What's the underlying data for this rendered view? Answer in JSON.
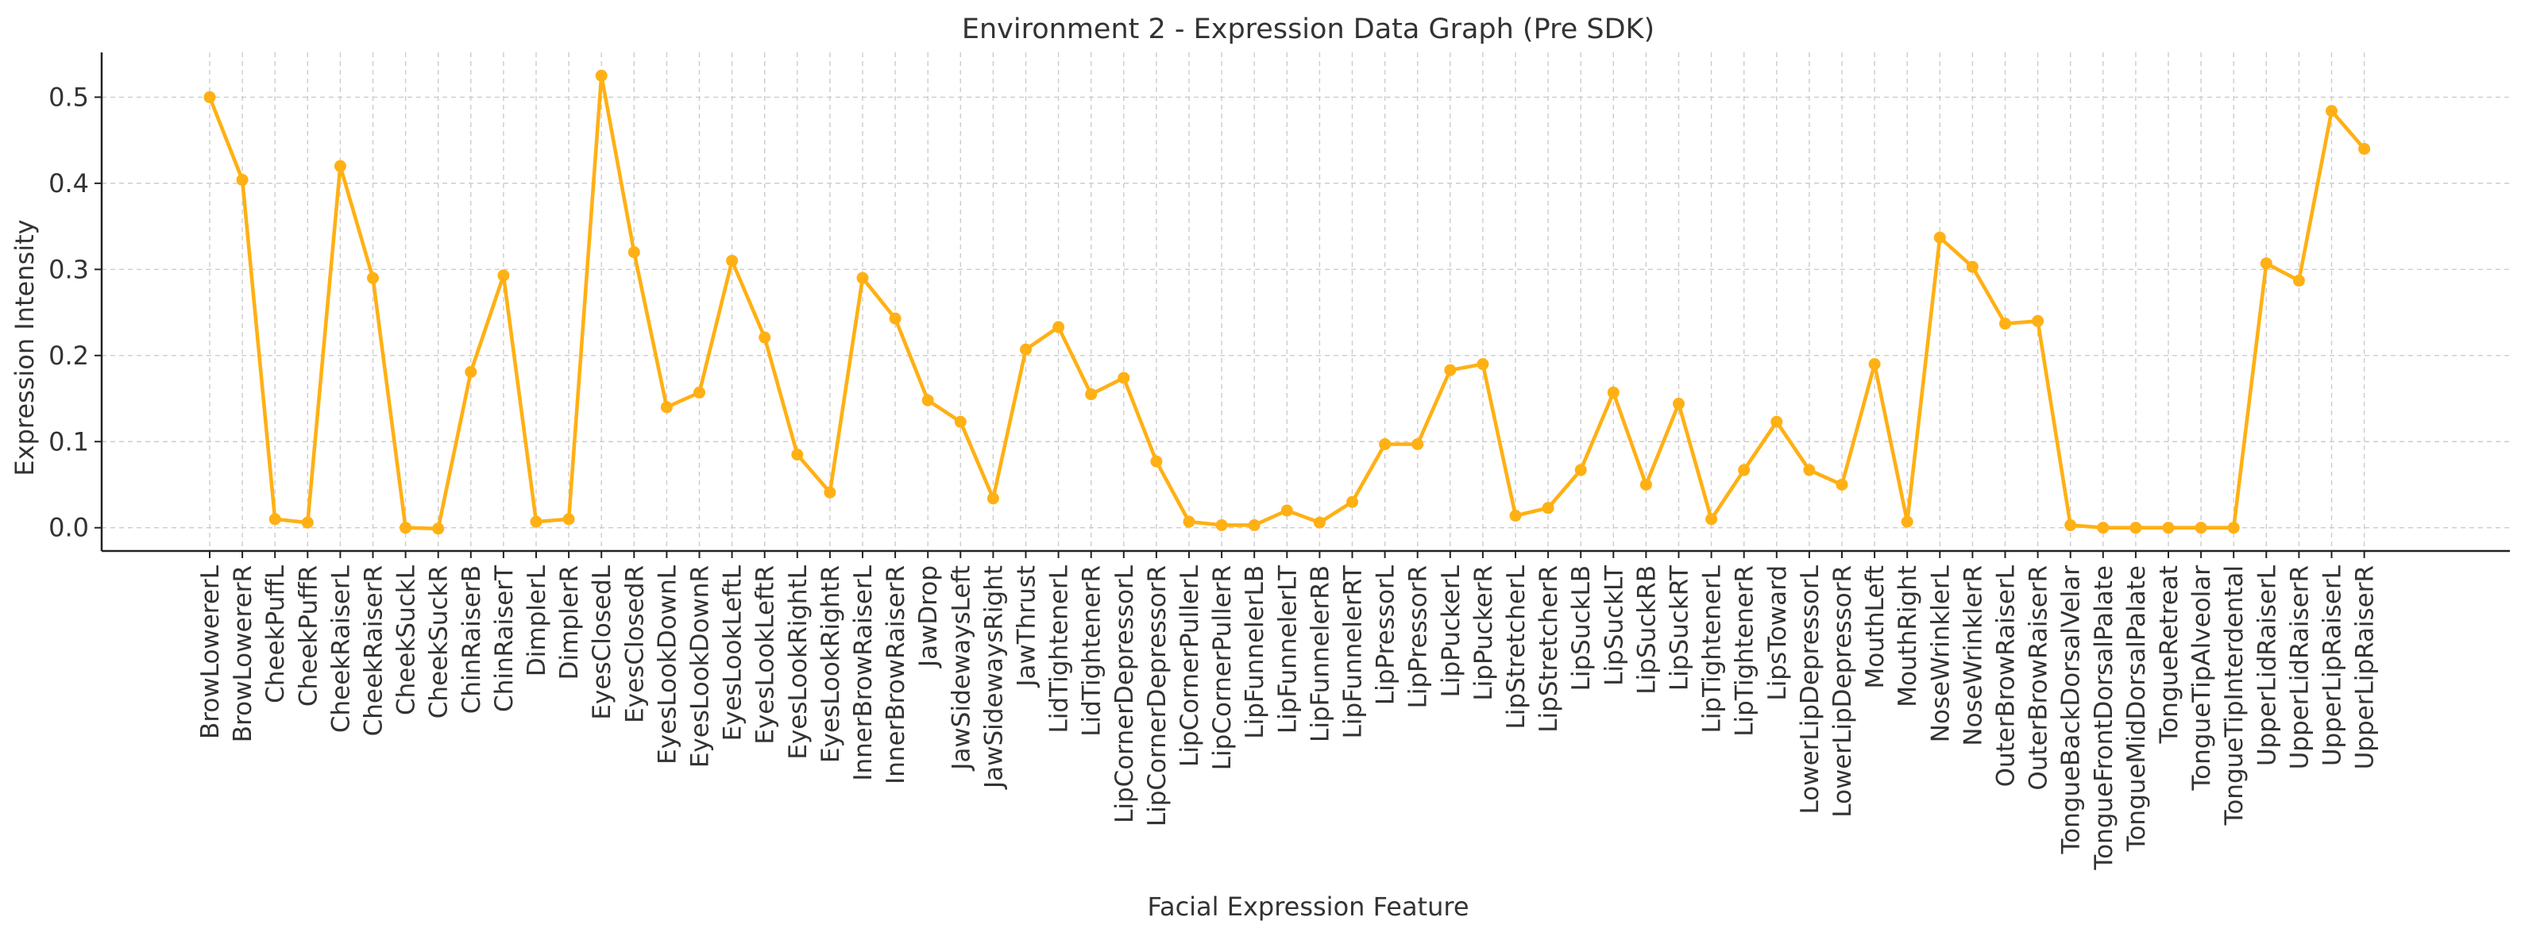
{
  "chart_data": {
    "type": "line",
    "title": "Environment 2 - Expression Data Graph (Pre SDK)",
    "xlabel": "Facial Expression Feature",
    "ylabel": "Expression Intensity",
    "ylim": [
      -0.027,
      0.552
    ],
    "yticks": [
      0.0,
      0.1,
      0.2,
      0.3,
      0.4,
      0.5
    ],
    "ytick_labels": [
      "0.0",
      "0.1",
      "0.2",
      "0.3",
      "0.4",
      "0.5"
    ],
    "grid": true,
    "line_color": "#FFB014",
    "categories": [
      "BrowLowererL",
      "BrowLowererR",
      "CheekPuffL",
      "CheekPuffR",
      "CheekRaiserL",
      "CheekRaiserR",
      "CheekSuckL",
      "CheekSuckR",
      "ChinRaiserB",
      "ChinRaiserT",
      "DimplerL",
      "DimplerR",
      "EyesClosedL",
      "EyesClosedR",
      "EyesLookDownL",
      "EyesLookDownR",
      "EyesLookLeftL",
      "EyesLookLeftR",
      "EyesLookRightL",
      "EyesLookRightR",
      "InnerBrowRaiserL",
      "InnerBrowRaiserR",
      "JawDrop",
      "JawSidewaysLeft",
      "JawSidewaysRight",
      "JawThrust",
      "LidTightenerL",
      "LidTightenerR",
      "LipCornerDepressorL",
      "LipCornerDepressorR",
      "LipCornerPullerL",
      "LipCornerPullerR",
      "LipFunnelerLB",
      "LipFunnelerLT",
      "LipFunnelerRB",
      "LipFunnelerRT",
      "LipPressorL",
      "LipPressorR",
      "LipPuckerL",
      "LipPuckerR",
      "LipStretcherL",
      "LipStretcherR",
      "LipSuckLB",
      "LipSuckLT",
      "LipSuckRB",
      "LipSuckRT",
      "LipTightenerL",
      "LipTightenerR",
      "LipsToward",
      "LowerLipDepressorL",
      "LowerLipDepressorR",
      "MouthLeft",
      "MouthRight",
      "NoseWrinklerL",
      "NoseWrinklerR",
      "OuterBrowRaiserL",
      "OuterBrowRaiserR",
      "TongueBackDorsalVelar",
      "TongueFrontDorsalPalate",
      "TongueMidDorsalPalate",
      "TongueRetreat",
      "TongueTipAlveolar",
      "TongueTipInterdental",
      "UpperLidRaiserL",
      "UpperLidRaiserR",
      "UpperLipRaiserL",
      "UpperLipRaiserR"
    ],
    "values": [
      0.5,
      0.404,
      0.01,
      0.006,
      0.42,
      0.29,
      0.0,
      -0.001,
      0.181,
      0.293,
      0.007,
      0.01,
      0.525,
      0.32,
      0.14,
      0.157,
      0.31,
      0.221,
      0.085,
      0.041,
      0.29,
      0.243,
      0.148,
      0.123,
      0.034,
      0.207,
      0.233,
      0.155,
      0.174,
      0.077,
      0.007,
      0.003,
      0.003,
      0.02,
      0.006,
      0.03,
      0.097,
      0.097,
      0.183,
      0.19,
      0.014,
      0.023,
      0.067,
      0.157,
      0.05,
      0.144,
      0.01,
      0.067,
      0.123,
      0.067,
      0.05,
      0.19,
      0.007,
      0.337,
      0.303,
      0.237,
      0.24,
      0.003,
      0.0,
      0.0,
      0.0,
      0.0,
      0.0,
      0.307,
      0.287,
      0.484,
      0.44
    ]
  }
}
